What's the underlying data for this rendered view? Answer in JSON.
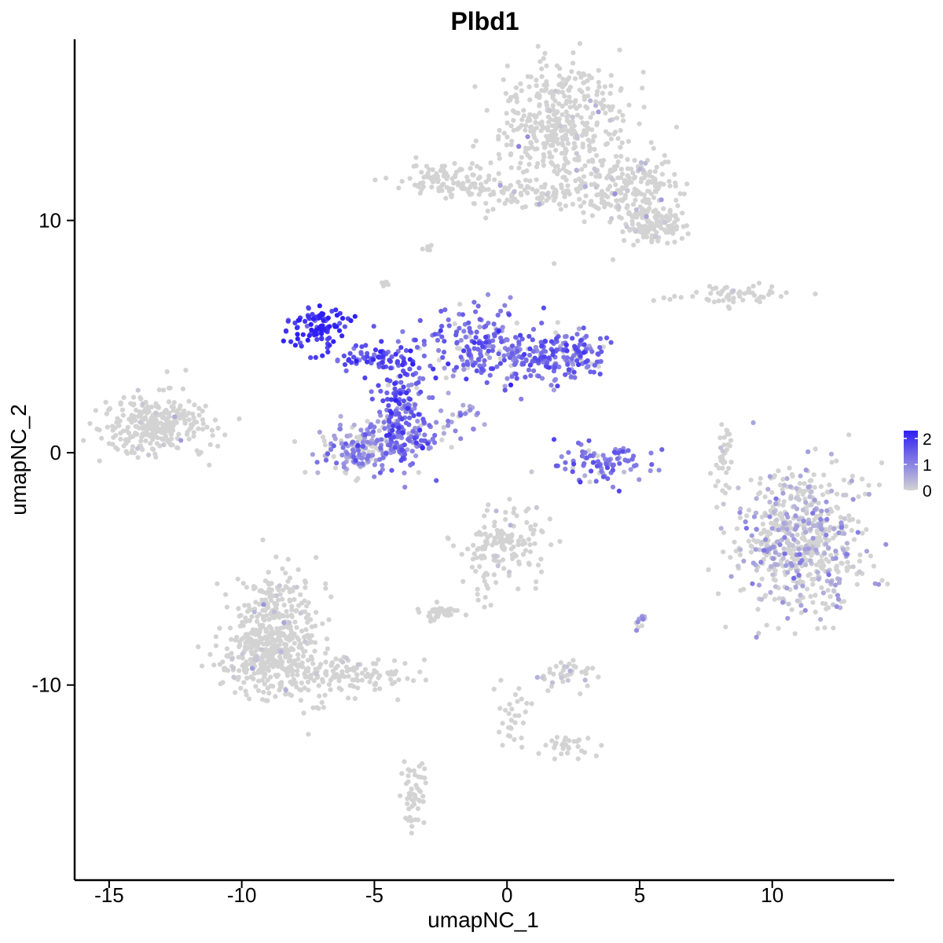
{
  "chart_data": {
    "type": "scatter",
    "title": "Plbd1",
    "xlabel": "umapNC_1",
    "ylabel": "umapNC_2",
    "xlim": [
      -16.3,
      14.6
    ],
    "ylim": [
      -18.4,
      17.8
    ],
    "x_ticks": [
      -15,
      -10,
      -5,
      0,
      5,
      10
    ],
    "x_tick_labels": [
      "-15",
      "-10",
      "-5",
      "0",
      "5",
      "10"
    ],
    "y_ticks": [
      -10,
      0,
      10
    ],
    "y_tick_labels": [
      "-10",
      "0",
      "10"
    ],
    "grid": false,
    "legend": {
      "placement": "right",
      "type": "colorbar",
      "range": [
        0,
        2.3
      ],
      "ticks": [
        0,
        1,
        2
      ],
      "tick_labels": [
        "0",
        "1",
        "2"
      ],
      "low_color": "#d3d3d3",
      "high_color": "#2e1ef5"
    },
    "clusters": [
      {
        "cx": 2.2,
        "cy": 14.2,
        "sx": 1.2,
        "sy": 1.5,
        "n": 420,
        "expr_mean": 0.05,
        "expr_frac": 0.04
      },
      {
        "cx": 4.5,
        "cy": 11.4,
        "sx": 1.0,
        "sy": 0.8,
        "n": 200,
        "expr_mean": 0.2,
        "expr_frac": 0.05
      },
      {
        "cx": 5.6,
        "cy": 9.8,
        "sx": 0.6,
        "sy": 0.4,
        "n": 120,
        "expr_mean": 0.2,
        "expr_frac": 0.04
      },
      {
        "cx": 0.5,
        "cy": 11.2,
        "sx": 1.6,
        "sy": 0.35,
        "n": 110,
        "expr_mean": 0.1,
        "expr_frac": 0.02
      },
      {
        "cx": -2.3,
        "cy": 11.8,
        "sx": 1.0,
        "sy": 0.4,
        "n": 90,
        "expr_mean": 0.1,
        "expr_frac": 0.03
      },
      {
        "cx": -13.3,
        "cy": 1.2,
        "sx": 1.0,
        "sy": 0.6,
        "n": 300,
        "expr_mean": 0.1,
        "expr_frac": 0.04
      },
      {
        "cx": -7.1,
        "cy": 5.4,
        "sx": 0.5,
        "sy": 0.45,
        "n": 95,
        "expr_mean": 2.05,
        "expr_frac": 1.0
      },
      {
        "cx": -5.1,
        "cy": 4.1,
        "sx": 0.9,
        "sy": 0.3,
        "n": 70,
        "expr_mean": 1.6,
        "expr_frac": 0.95
      },
      {
        "cx": -3.9,
        "cy": 2.0,
        "sx": 0.55,
        "sy": 1.2,
        "n": 130,
        "expr_mean": 1.55,
        "expr_frac": 0.95
      },
      {
        "cx": -5.6,
        "cy": 0.2,
        "sx": 0.75,
        "sy": 0.6,
        "n": 150,
        "expr_mean": 0.8,
        "expr_frac": 0.7
      },
      {
        "cx": -4.1,
        "cy": 0.5,
        "sx": 0.6,
        "sy": 0.55,
        "n": 110,
        "expr_mean": 1.1,
        "expr_frac": 0.85
      },
      {
        "cx": -0.9,
        "cy": 4.5,
        "sx": 1.1,
        "sy": 0.9,
        "n": 200,
        "expr_mean": 1.3,
        "expr_frac": 0.9
      },
      {
        "cx": 2.0,
        "cy": 4.1,
        "sx": 1.0,
        "sy": 0.5,
        "n": 180,
        "expr_mean": 1.3,
        "expr_frac": 0.92
      },
      {
        "cx": 3.6,
        "cy": -0.4,
        "sx": 0.8,
        "sy": 0.45,
        "n": 90,
        "expr_mean": 1.2,
        "expr_frac": 0.9
      },
      {
        "cx": -1.9,
        "cy": 1.3,
        "sx": 0.6,
        "sy": 0.5,
        "n": 30,
        "expr_mean": 0.9,
        "expr_frac": 0.8
      },
      {
        "cx": 11.1,
        "cy": -3.8,
        "sx": 1.2,
        "sy": 1.5,
        "n": 620,
        "expr_mean": 0.5,
        "expr_frac": 0.38
      },
      {
        "cx": 8.6,
        "cy": 6.8,
        "sx": 1.3,
        "sy": 0.2,
        "n": 60,
        "expr_mean": 0.1,
        "expr_frac": 0.04
      },
      {
        "cx": 8.2,
        "cy": -0.2,
        "sx": 0.15,
        "sy": 0.9,
        "n": 35,
        "expr_mean": 0.3,
        "expr_frac": 0.15
      },
      {
        "cx": -0.1,
        "cy": -3.9,
        "sx": 0.8,
        "sy": 0.7,
        "n": 140,
        "expr_mean": 0.1,
        "expr_frac": 0.03
      },
      {
        "cx": -2.6,
        "cy": -6.9,
        "sx": 0.35,
        "sy": 0.2,
        "n": 40,
        "expr_mean": 0.05,
        "expr_frac": 0.0
      },
      {
        "cx": -8.7,
        "cy": -7.6,
        "sx": 0.8,
        "sy": 1.4,
        "n": 380,
        "expr_mean": 0.1,
        "expr_frac": 0.04
      },
      {
        "cx": -9.5,
        "cy": -9.0,
        "sx": 0.7,
        "sy": 0.6,
        "n": 150,
        "expr_mean": 0.1,
        "expr_frac": 0.03
      },
      {
        "cx": -6.2,
        "cy": -9.6,
        "sx": 1.3,
        "sy": 0.45,
        "n": 150,
        "expr_mean": 0.15,
        "expr_frac": 0.04
      },
      {
        "cx": 2.2,
        "cy": -9.5,
        "sx": 0.55,
        "sy": 0.3,
        "n": 40,
        "expr_mean": 0.3,
        "expr_frac": 0.2
      },
      {
        "cx": 2.2,
        "cy": -12.7,
        "sx": 0.5,
        "sy": 0.25,
        "n": 30,
        "expr_mean": 0.05,
        "expr_frac": 0.0
      },
      {
        "cx": -3.5,
        "cy": -14.7,
        "sx": 0.25,
        "sy": 0.7,
        "n": 50,
        "expr_mean": 0.05,
        "expr_frac": 0.0
      },
      {
        "cx": 0.2,
        "cy": -11.3,
        "sx": 0.35,
        "sy": 0.6,
        "n": 30,
        "expr_mean": 0.05,
        "expr_frac": 0.0
      },
      {
        "cx": 5.0,
        "cy": -7.3,
        "sx": 0.1,
        "sy": 0.25,
        "n": 12,
        "expr_mean": 0.7,
        "expr_frac": 0.6
      },
      {
        "cx": -4.6,
        "cy": 7.3,
        "sx": 0.1,
        "sy": 0.1,
        "n": 6,
        "expr_mean": 0.05,
        "expr_frac": 0.0
      },
      {
        "cx": -3.0,
        "cy": 8.8,
        "sx": 0.1,
        "sy": 0.08,
        "n": 5,
        "expr_mean": 0.05,
        "expr_frac": 0.0
      },
      {
        "cx": -1.0,
        "cy": -6.0,
        "sx": 0.4,
        "sy": 0.6,
        "n": 15,
        "expr_mean": 0.05,
        "expr_frac": 0.0
      }
    ]
  }
}
